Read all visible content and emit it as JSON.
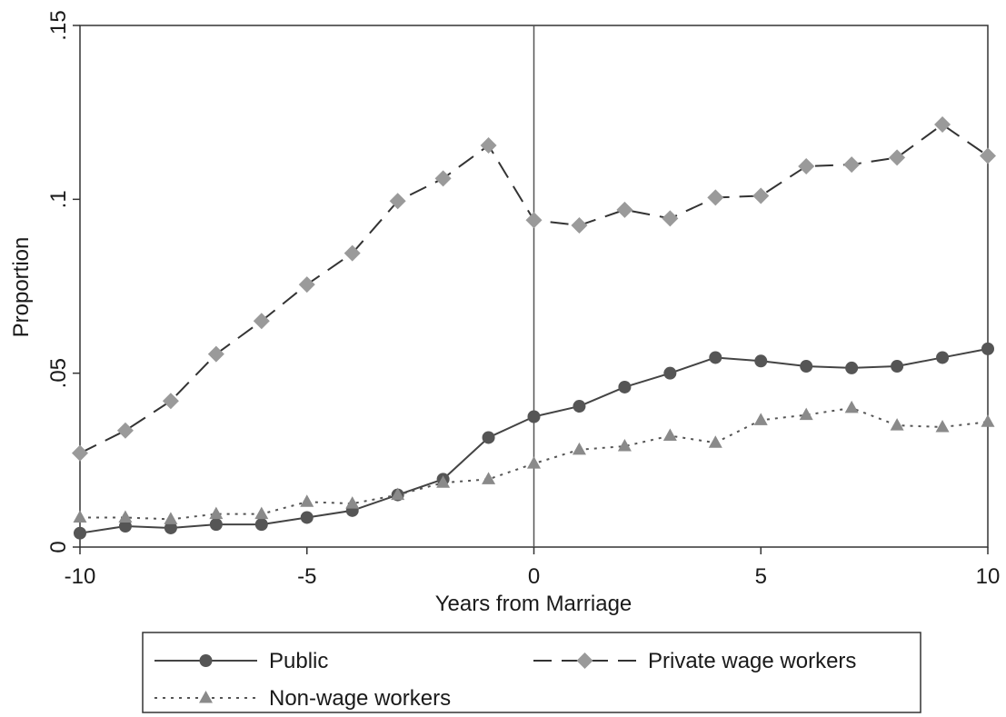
{
  "chart_data": {
    "type": "line",
    "xlabel": "Years from Marriage",
    "ylabel": "Proportion",
    "xlim": [
      -10,
      10
    ],
    "ylim": [
      0,
      0.15
    ],
    "x_ticks": [
      -10,
      -5,
      0,
      5,
      10
    ],
    "x_tick_labels": [
      "-10",
      "-5",
      "0",
      "5",
      "10"
    ],
    "y_ticks": [
      0,
      0.05,
      0.1,
      0.15
    ],
    "y_tick_labels": [
      "0",
      ".05",
      ".1",
      ".15"
    ],
    "reference_line_x": 0,
    "grid": false,
    "legend_position": "bottom",
    "x": [
      -10,
      -9,
      -8,
      -7,
      -6,
      -5,
      -4,
      -3,
      -2,
      -1,
      0,
      1,
      2,
      3,
      4,
      5,
      6,
      7,
      8,
      9,
      10
    ],
    "series": [
      {
        "name": "Public",
        "color": "#555555",
        "line_style": "solid",
        "marker": "circle",
        "values": [
          0.004,
          0.006,
          0.0055,
          0.0065,
          0.0065,
          0.0085,
          0.0105,
          0.015,
          0.0195,
          0.0315,
          0.0375,
          0.0405,
          0.046,
          0.05,
          0.0545,
          0.0535,
          0.052,
          0.0515,
          0.052,
          0.0545,
          0.057
        ]
      },
      {
        "name": "Private wage workers",
        "color": "#9a9a9a",
        "line_style": "dashed",
        "marker": "diamond",
        "values": [
          0.027,
          0.0335,
          0.042,
          0.0555,
          0.065,
          0.0755,
          0.0845,
          0.0995,
          0.106,
          0.1155,
          0.094,
          0.0925,
          0.097,
          0.0945,
          0.1005,
          0.101,
          0.1095,
          0.11,
          0.112,
          0.1215,
          0.1125
        ]
      },
      {
        "name": "Non-wage workers",
        "color": "#8a8a8a",
        "line_style": "dotted",
        "marker": "triangle",
        "values": [
          0.0085,
          0.0085,
          0.008,
          0.0095,
          0.0095,
          0.013,
          0.0125,
          0.015,
          0.0185,
          0.0195,
          0.024,
          0.028,
          0.029,
          0.032,
          0.03,
          0.0365,
          0.038,
          0.04,
          0.035,
          0.0345,
          0.036
        ]
      }
    ]
  }
}
